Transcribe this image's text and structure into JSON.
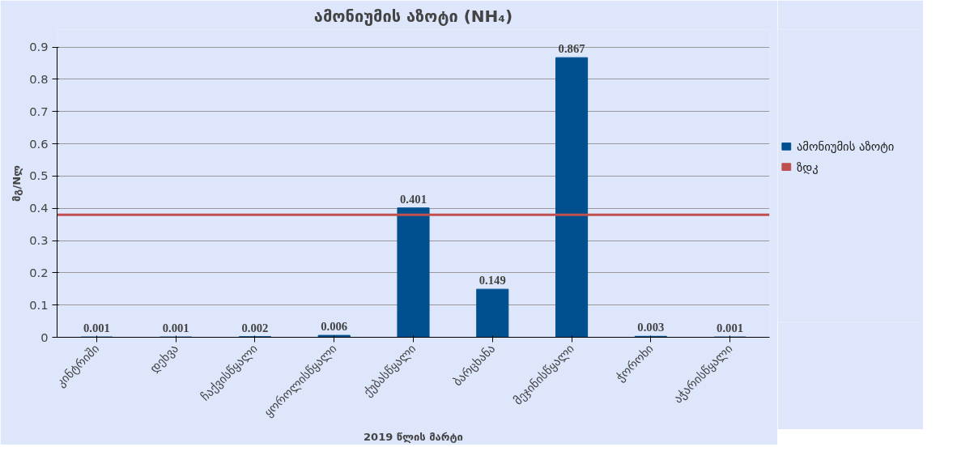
{
  "chart_data": {
    "type": "bar",
    "title": "ამონიუმის აზოტი (NH₄)",
    "xlabel": "2019 წლის მარტი",
    "ylabel": "მგ/Nლ",
    "categories": [
      "კინტრიში",
      "დეხვა",
      "ჩაქვისწყალი",
      "ყოროლისწყალი",
      "ქუბასწყალი",
      "ბარცხანა",
      "მეჯინისწყალი",
      "ჭოროხი",
      "აჭარისწყალი"
    ],
    "series": [
      {
        "name": "ამონიუმის აზოტი",
        "color": "#00508f",
        "values": [
          0.001,
          0.001,
          0.002,
          0.006,
          0.401,
          0.149,
          0.867,
          0.003,
          0.001
        ]
      }
    ],
    "ref_lines": [
      {
        "axis": "y",
        "value": 0.38,
        "label": "ზდკ",
        "color": "#c0504d"
      }
    ],
    "ylim": [
      0,
      0.9
    ],
    "yticks": [
      0,
      0.1,
      0.2,
      0.3,
      0.4,
      0.5,
      0.6,
      0.7,
      0.8,
      0.9
    ],
    "grid": "y",
    "legend": "right",
    "data_labels": true
  }
}
